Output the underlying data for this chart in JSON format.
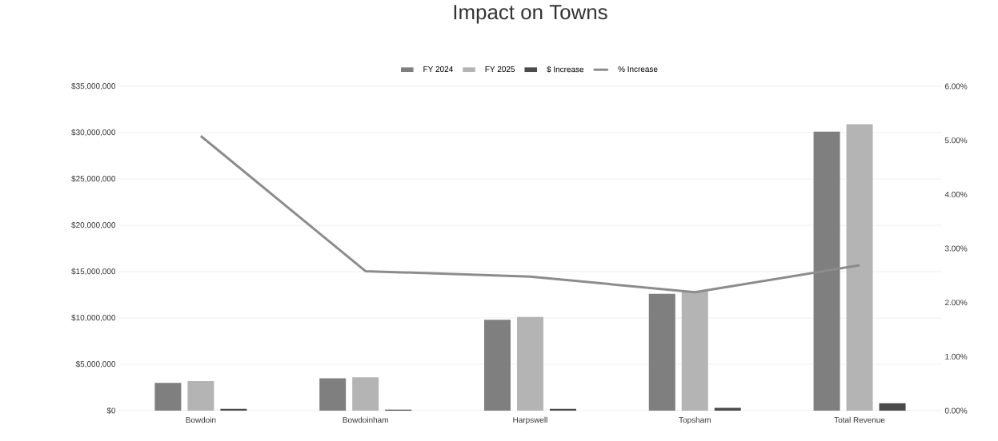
{
  "chart_data": {
    "type": "bar",
    "title": "Impact on Towns",
    "categories": [
      "Bowdoin",
      "Bowdoinham",
      "Harpswell",
      "Topsham",
      "Total Revenue"
    ],
    "series": [
      {
        "name": "FY 2024",
        "color": "#7f7f7f",
        "values": [
          3000000,
          3500000,
          9800000,
          12600000,
          30100000
        ]
      },
      {
        "name": "FY 2025",
        "color": "#b4b4b4",
        "values": [
          3200000,
          3600000,
          10100000,
          12900000,
          30900000
        ]
      },
      {
        "name": "$ Increase",
        "color": "#4a4a4a",
        "values": [
          200000,
          100000,
          200000,
          300000,
          800000
        ]
      },
      {
        "name": "% Increase",
        "type": "line",
        "axis": "y2",
        "color": "#8c8c8c",
        "line_style": "solid",
        "values": [
          5.08,
          2.58,
          2.48,
          2.19,
          2.69
        ]
      }
    ],
    "ylim": [
      0,
      35000000
    ],
    "yticks": [
      {
        "value": 0,
        "label": "$0"
      },
      {
        "value": 5000000,
        "label": "$5,000,000"
      },
      {
        "value": 10000000,
        "label": "$10,000,000"
      },
      {
        "value": 15000000,
        "label": "$15,000,000"
      },
      {
        "value": 20000000,
        "label": "$20,000,000"
      },
      {
        "value": 25000000,
        "label": "$25,000,000"
      },
      {
        "value": 30000000,
        "label": "$30,000,000"
      },
      {
        "value": 35000000,
        "label": "$35,000,000"
      }
    ],
    "y2lim": [
      0,
      6
    ],
    "y2ticks": [
      {
        "value": 0,
        "label": "0.00%"
      },
      {
        "value": 1,
        "label": "1.00%"
      },
      {
        "value": 2,
        "label": "2.00%"
      },
      {
        "value": 3,
        "label": "3.00%"
      },
      {
        "value": 4,
        "label": "4.00%"
      },
      {
        "value": 5,
        "label": "5.00%"
      },
      {
        "value": 6,
        "label": "6.00%"
      }
    ],
    "grid": "y",
    "legend": "top"
  }
}
